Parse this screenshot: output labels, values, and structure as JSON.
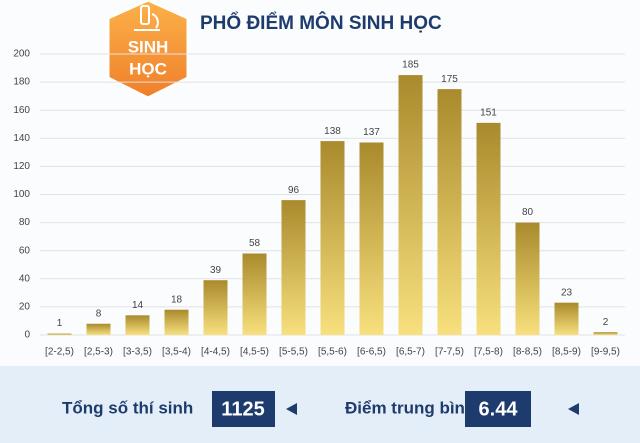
{
  "chart_data": {
    "type": "bar",
    "title": "PHỔ ĐIỂM MÔN SINH HỌC",
    "badge_lines": [
      "SINH",
      "HỌC"
    ],
    "categories": [
      "[2-2,5)",
      "[2,5-3)",
      "[3-3,5)",
      "[3,5-4)",
      "[4-4,5)",
      "[4,5-5)",
      "[5-5,5)",
      "[5,5-6)",
      "[6-6,5)",
      "[6,5-7)",
      "[7-7,5)",
      "[7,5-8)",
      "[8-8,5)",
      "[8,5-9)",
      "[9-9,5)"
    ],
    "values": [
      1,
      8,
      14,
      18,
      39,
      58,
      96,
      138,
      137,
      185,
      175,
      151,
      80,
      23,
      2
    ],
    "gradient": [
      "#a98a2c",
      "#f8e07e"
    ],
    "ylim": [
      0,
      200
    ],
    "yticks": [
      0,
      20,
      40,
      60,
      80,
      100,
      120,
      140,
      160,
      180,
      200
    ],
    "grid": true,
    "summary": [
      {
        "label": "Tổng số thí sinh",
        "value": 1125
      },
      {
        "label": "Điểm trung bình",
        "value": 6.44
      }
    ]
  }
}
